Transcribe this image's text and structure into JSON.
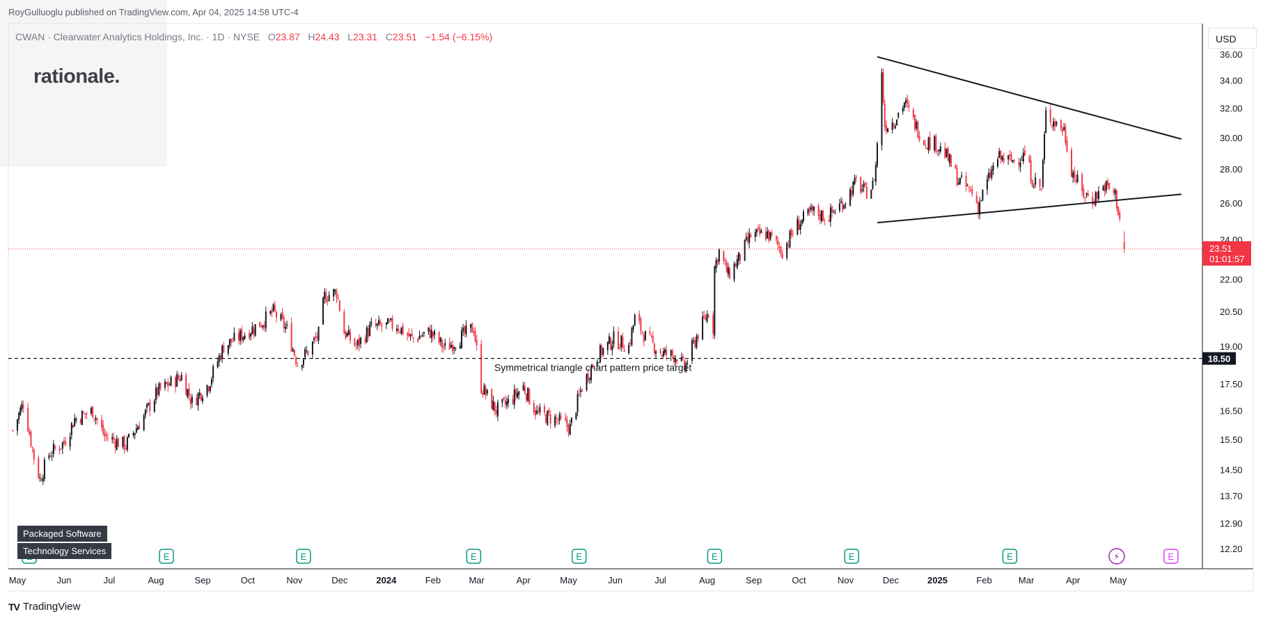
{
  "header": {
    "published": "RoyGulluoglu published on TradingView.com, Apr 04, 2025 14:58 UTC-4"
  },
  "symbol_line": {
    "name": "CWAN · Clearwater Analytics Holdings, Inc. · 1D · NYSE",
    "o_label": "O",
    "o": "23.87",
    "h_label": "H",
    "h": "24.43",
    "l_label": "L",
    "l": "23.31",
    "c_label": "C",
    "c": "23.51",
    "change": "−1.54 (−6.15%)"
  },
  "logo": {
    "text": "rationale."
  },
  "currency": "USD",
  "sector_tags": [
    "Packaged Software",
    "Technology Services"
  ],
  "footer": {
    "brand": "TradingView",
    "mark": "TV"
  },
  "colors": {
    "up": "#131722",
    "down": "#f23645",
    "price_label_bg": "#f23645",
    "target_label_bg": "#131722",
    "earnings": "#089981",
    "dividends": "#e040fb"
  },
  "chart_data": {
    "type": "candlestick",
    "title": "CWAN · Clearwater Analytics Holdings, Inc. · 1D · NYSE",
    "ylim": [
      12.0,
      37.0
    ],
    "y_scale": "log",
    "y_ticks": [
      "36.00",
      "34.00",
      "32.00",
      "30.00",
      "28.00",
      "26.00",
      "24.00",
      "22.00",
      "20.50",
      "19.00",
      "17.50",
      "16.50",
      "15.50",
      "14.50",
      "13.70",
      "12.90",
      "12.20"
    ],
    "x_ticks": [
      "May",
      "Jun",
      "Jul",
      "Aug",
      "Sep",
      "Oct",
      "Nov",
      "Dec",
      "2024",
      "Feb",
      "Mar",
      "Apr",
      "May",
      "Jun",
      "Jul",
      "Aug",
      "Sep",
      "Oct",
      "Nov",
      "Dec",
      "2025",
      "Feb",
      "Mar",
      "Apr",
      "May"
    ],
    "bold_x_ticks": [
      "2024",
      "2025"
    ],
    "price_path": [
      {
        "date": "2023-04-28",
        "price": 15.8
      },
      {
        "date": "2023-05-05",
        "price": 16.8
      },
      {
        "date": "2023-05-12",
        "price": 14.9
      },
      {
        "date": "2023-05-16",
        "price": 14.2
      },
      {
        "date": "2023-05-22",
        "price": 15.0
      },
      {
        "date": "2023-06-01",
        "price": 15.4
      },
      {
        "date": "2023-06-08",
        "price": 16.2
      },
      {
        "date": "2023-06-20",
        "price": 16.5
      },
      {
        "date": "2023-06-28",
        "price": 15.6
      },
      {
        "date": "2023-07-12",
        "price": 15.3
      },
      {
        "date": "2023-07-25",
        "price": 16.4
      },
      {
        "date": "2023-08-02",
        "price": 17.2
      },
      {
        "date": "2023-08-18",
        "price": 17.8
      },
      {
        "date": "2023-08-25",
        "price": 16.8
      },
      {
        "date": "2023-09-05",
        "price": 17.5
      },
      {
        "date": "2023-09-15",
        "price": 19.0
      },
      {
        "date": "2023-09-28",
        "price": 19.5
      },
      {
        "date": "2023-10-10",
        "price": 20.0
      },
      {
        "date": "2023-10-18",
        "price": 20.5
      },
      {
        "date": "2023-10-27",
        "price": 19.7
      },
      {
        "date": "2023-11-03",
        "price": 18.3
      },
      {
        "date": "2023-11-10",
        "price": 18.8
      },
      {
        "date": "2023-11-17",
        "price": 19.5
      },
      {
        "date": "2023-11-21",
        "price": 21.2
      },
      {
        "date": "2023-11-29",
        "price": 21.4
      },
      {
        "date": "2023-12-04",
        "price": 19.6
      },
      {
        "date": "2023-12-12",
        "price": 19.0
      },
      {
        "date": "2023-12-22",
        "price": 19.8
      },
      {
        "date": "2024-01-08",
        "price": 19.9
      },
      {
        "date": "2024-01-18",
        "price": 19.3
      },
      {
        "date": "2024-01-30",
        "price": 19.6
      },
      {
        "date": "2024-02-09",
        "price": 18.9
      },
      {
        "date": "2024-02-20",
        "price": 19.4
      },
      {
        "date": "2024-02-28",
        "price": 19.8
      },
      {
        "date": "2024-03-04",
        "price": 17.4
      },
      {
        "date": "2024-03-14",
        "price": 16.5
      },
      {
        "date": "2024-03-22",
        "price": 16.8
      },
      {
        "date": "2024-04-01",
        "price": 17.4
      },
      {
        "date": "2024-04-10",
        "price": 16.4
      },
      {
        "date": "2024-04-22",
        "price": 16.2
      },
      {
        "date": "2024-05-02",
        "price": 15.9
      },
      {
        "date": "2024-05-10",
        "price": 17.4
      },
      {
        "date": "2024-05-20",
        "price": 18.6
      },
      {
        "date": "2024-05-31",
        "price": 19.3
      },
      {
        "date": "2024-06-10",
        "price": 19.0
      },
      {
        "date": "2024-06-14",
        "price": 20.2
      },
      {
        "date": "2024-06-21",
        "price": 19.4
      },
      {
        "date": "2024-07-02",
        "price": 18.7
      },
      {
        "date": "2024-07-12",
        "price": 18.6
      },
      {
        "date": "2024-07-17",
        "price": 18.1
      },
      {
        "date": "2024-07-25",
        "price": 19.4
      },
      {
        "date": "2024-08-02",
        "price": 20.5
      },
      {
        "date": "2024-08-05",
        "price": 19.8
      },
      {
        "date": "2024-08-06",
        "price": 22.6
      },
      {
        "date": "2024-08-09",
        "price": 23.4
      },
      {
        "date": "2024-08-15",
        "price": 22.2
      },
      {
        "date": "2024-08-22",
        "price": 23.0
      },
      {
        "date": "2024-08-30",
        "price": 24.2
      },
      {
        "date": "2024-09-10",
        "price": 24.3
      },
      {
        "date": "2024-09-20",
        "price": 23.4
      },
      {
        "date": "2024-09-30",
        "price": 24.8
      },
      {
        "date": "2024-10-10",
        "price": 25.5
      },
      {
        "date": "2024-10-20",
        "price": 25.2
      },
      {
        "date": "2024-10-31",
        "price": 26.1
      },
      {
        "date": "2024-11-08",
        "price": 27.2
      },
      {
        "date": "2024-11-14",
        "price": 26.6
      },
      {
        "date": "2024-11-19",
        "price": 27.0
      },
      {
        "date": "2024-11-21",
        "price": 28.2
      },
      {
        "date": "2024-11-25",
        "price": 34.4
      },
      {
        "date": "2024-11-27",
        "price": 30.8
      },
      {
        "date": "2024-12-03",
        "price": 31.1
      },
      {
        "date": "2024-12-10",
        "price": 32.4
      },
      {
        "date": "2024-12-16",
        "price": 31.1
      },
      {
        "date": "2024-12-23",
        "price": 29.8
      },
      {
        "date": "2024-12-31",
        "price": 29.6
      },
      {
        "date": "2025-01-07",
        "price": 28.8
      },
      {
        "date": "2025-01-15",
        "price": 27.3
      },
      {
        "date": "2025-01-24",
        "price": 26.6
      },
      {
        "date": "2025-01-28",
        "price": 25.8
      },
      {
        "date": "2025-02-03",
        "price": 27.2
      },
      {
        "date": "2025-02-10",
        "price": 28.7
      },
      {
        "date": "2025-02-19",
        "price": 28.5
      },
      {
        "date": "2025-02-28",
        "price": 28.9
      },
      {
        "date": "2025-03-05",
        "price": 27.4
      },
      {
        "date": "2025-03-11",
        "price": 26.8
      },
      {
        "date": "2025-03-14",
        "price": 31.6
      },
      {
        "date": "2025-03-19",
        "price": 31.1
      },
      {
        "date": "2025-03-26",
        "price": 30.5
      },
      {
        "date": "2025-03-31",
        "price": 28.0
      },
      {
        "date": "2025-04-07",
        "price": 26.6
      },
      {
        "date": "2025-04-14",
        "price": 26.2
      },
      {
        "date": "2025-04-22",
        "price": 27.0
      },
      {
        "date": "2025-04-29",
        "price": 26.5
      },
      {
        "date": "2025-05-02",
        "price": 25.1
      },
      {
        "date": "2025-05-05",
        "price": 23.51
      }
    ],
    "last_candle": {
      "open": 23.87,
      "high": 24.43,
      "low": 23.31,
      "close": 23.51
    },
    "annotations": {
      "resistance_line": {
        "from": {
          "date": "2024-11-22",
          "price": 35.8
        },
        "to": {
          "date": "2025-06-12",
          "price": 29.9
        }
      },
      "support_line": {
        "from": {
          "date": "2024-11-22",
          "price": 24.9
        },
        "to": {
          "date": "2025-06-12",
          "price": 26.5
        }
      },
      "price_target": {
        "price": 18.5,
        "label": "18.50",
        "text": "Symmetrical triangle chart pattern price target"
      },
      "current_price": {
        "price": 23.51,
        "label": "23.51",
        "countdown": "01:01:57"
      }
    },
    "event_markers": [
      {
        "date": "2023-05-09",
        "type": "earnings",
        "label": "E"
      },
      {
        "date": "2023-08-08",
        "type": "earnings",
        "label": "E"
      },
      {
        "date": "2023-11-07",
        "type": "earnings",
        "label": "E"
      },
      {
        "date": "2024-02-28",
        "type": "earnings",
        "label": "E"
      },
      {
        "date": "2024-05-08",
        "type": "earnings",
        "label": "E"
      },
      {
        "date": "2024-08-06",
        "type": "earnings",
        "label": "E"
      },
      {
        "date": "2024-11-05",
        "type": "earnings",
        "label": "E"
      },
      {
        "date": "2025-02-18",
        "type": "earnings",
        "label": "E"
      },
      {
        "date": "2025-04-30",
        "type": "split",
        "label": "⚡"
      },
      {
        "date": "2025-06-05",
        "type": "dividend",
        "label": "E"
      }
    ]
  }
}
